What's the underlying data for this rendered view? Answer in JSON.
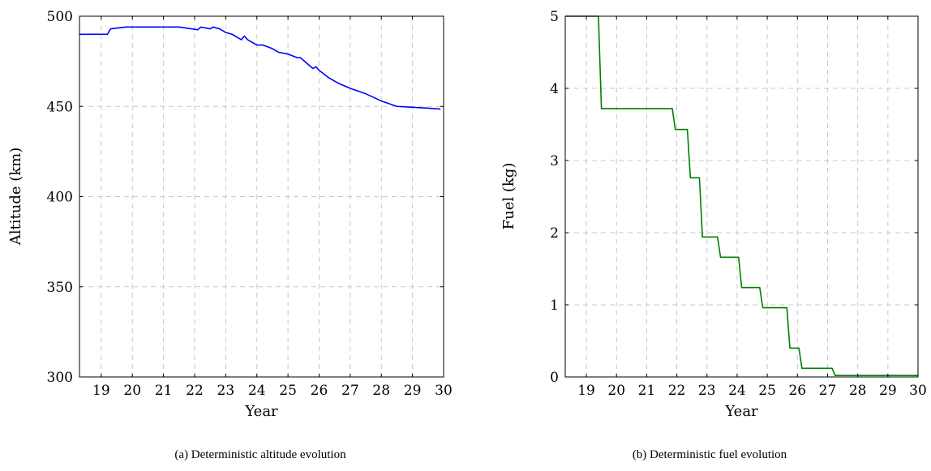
{
  "chart_data": [
    {
      "type": "line",
      "caption": "(a)  Deterministic altitude evolution",
      "xlabel": "Year",
      "ylabel": "Altitude (km)",
      "xlim": [
        18.3,
        30
      ],
      "ylim": [
        300,
        500
      ],
      "xticks": [
        19,
        20,
        21,
        22,
        23,
        24,
        25,
        26,
        27,
        28,
        29,
        30
      ],
      "yticks": [
        300,
        350,
        400,
        450,
        500
      ],
      "grid": true,
      "series": [
        {
          "color": "#0000ff",
          "x": [
            18.3,
            19.2,
            19.3,
            19.8,
            20.0,
            21.0,
            21.5,
            21.7,
            21.9,
            22.1,
            22.2,
            22.5,
            22.6,
            22.8,
            23.0,
            23.2,
            23.5,
            23.6,
            23.7,
            24.0,
            24.2,
            24.5,
            24.7,
            25.0,
            25.3,
            25.4,
            25.6,
            25.8,
            25.9,
            26.0,
            26.3,
            26.6,
            27.0,
            27.5,
            28.0,
            28.5,
            29.0,
            29.5,
            29.9
          ],
          "y": [
            490,
            490,
            493,
            494,
            494,
            494,
            494,
            493.5,
            493,
            492.5,
            494,
            493,
            494,
            493,
            491,
            490,
            487,
            489,
            487,
            484,
            484,
            482,
            480,
            479,
            477,
            477,
            474,
            471,
            472,
            470,
            466,
            463,
            460,
            457,
            453,
            450,
            449.5,
            449,
            448.5
          ]
        }
      ]
    },
    {
      "type": "line",
      "caption": "(b)  Deterministic fuel evolution",
      "xlabel": "Year",
      "ylabel": "Fuel (kg)",
      "xlim": [
        18.3,
        30
      ],
      "ylim": [
        0,
        5
      ],
      "xticks": [
        19,
        20,
        21,
        22,
        23,
        24,
        25,
        26,
        27,
        28,
        29,
        30
      ],
      "yticks": [
        0,
        1,
        2,
        3,
        4,
        5
      ],
      "grid": true,
      "series": [
        {
          "color": "#007f00",
          "x": [
            18.3,
            19.4,
            19.5,
            21.85,
            21.95,
            22.35,
            22.45,
            22.75,
            22.85,
            23.35,
            23.45,
            24.05,
            24.15,
            24.75,
            24.85,
            25.65,
            25.75,
            26.05,
            26.15,
            27.15,
            27.25,
            30
          ],
          "y": [
            5,
            5,
            3.72,
            3.72,
            3.43,
            3.43,
            2.76,
            2.76,
            1.94,
            1.94,
            1.66,
            1.66,
            1.24,
            1.24,
            0.96,
            0.96,
            0.4,
            0.4,
            0.12,
            0.12,
            0.02,
            0.02
          ]
        }
      ]
    }
  ]
}
